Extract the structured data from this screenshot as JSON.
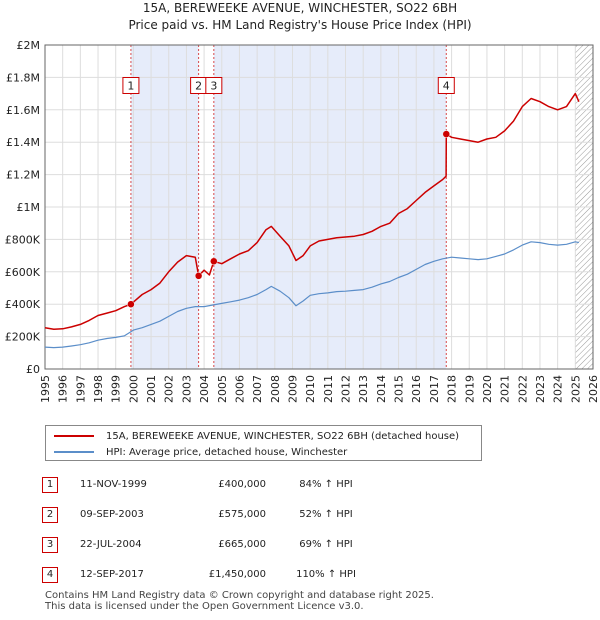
{
  "title_line1": "15A, BEREWEEKE AVENUE, WINCHESTER, SO22 6BH",
  "title_line2": "Price paid vs. HM Land Registry's House Price Index (HPI)",
  "chart_data": {
    "type": "line",
    "title": "15A, BEREWEEKE AVENUE, WINCHESTER, SO22 6BH — Price paid vs. HM Land Registry's House Price Index (HPI)",
    "xlabel": "",
    "ylabel": "",
    "xlim": [
      1995,
      2026
    ],
    "ylim": [
      0,
      2000000
    ],
    "x_ticks": [
      1995,
      1996,
      1997,
      1998,
      1999,
      2000,
      2001,
      2002,
      2003,
      2004,
      2005,
      2006,
      2007,
      2008,
      2009,
      2010,
      2011,
      2012,
      2013,
      2014,
      2015,
      2016,
      2017,
      2018,
      2019,
      2020,
      2021,
      2022,
      2023,
      2024,
      2025,
      2026
    ],
    "y_ticks": [
      0,
      200000,
      400000,
      600000,
      800000,
      1000000,
      1200000,
      1400000,
      1600000,
      1800000,
      2000000
    ],
    "y_tick_labels": [
      "£0",
      "£200K",
      "£400K",
      "£600K",
      "£800K",
      "£1M",
      "£1.2M",
      "£1.4M",
      "£1.6M",
      "£1.8M",
      "£2M"
    ],
    "shaded_ranges": [
      [
        1999.86,
        2003.69
      ],
      [
        2004.55,
        2017.7
      ]
    ],
    "hatched_from": 2025.0,
    "colors": {
      "property": "#cc0000",
      "hpi": "#5b8ec9",
      "shade": "#e6ecfa",
      "marker_border": "#cc0000",
      "grid": "#dddddd",
      "sale_line": "#cc0000"
    },
    "series": [
      {
        "name": "15A, BEREWEEKE AVENUE, WINCHESTER, SO22 6BH (detached house)",
        "color": "#cc0000",
        "points": [
          [
            1995.0,
            255000
          ],
          [
            1995.5,
            245000
          ],
          [
            1996.0,
            248000
          ],
          [
            1996.5,
            260000
          ],
          [
            1997.0,
            275000
          ],
          [
            1997.5,
            300000
          ],
          [
            1998.0,
            330000
          ],
          [
            1998.5,
            345000
          ],
          [
            1999.0,
            360000
          ],
          [
            1999.5,
            385000
          ],
          [
            1999.86,
            400000
          ],
          [
            2000.5,
            460000
          ],
          [
            2001.0,
            490000
          ],
          [
            2001.5,
            530000
          ],
          [
            2002.0,
            600000
          ],
          [
            2002.5,
            660000
          ],
          [
            2003.0,
            700000
          ],
          [
            2003.5,
            690000
          ],
          [
            2003.69,
            575000
          ],
          [
            2004.0,
            610000
          ],
          [
            2004.3,
            580000
          ],
          [
            2004.55,
            665000
          ],
          [
            2005.0,
            650000
          ],
          [
            2005.5,
            680000
          ],
          [
            2006.0,
            710000
          ],
          [
            2006.5,
            730000
          ],
          [
            2007.0,
            780000
          ],
          [
            2007.5,
            860000
          ],
          [
            2007.8,
            880000
          ],
          [
            2008.3,
            820000
          ],
          [
            2008.8,
            760000
          ],
          [
            2009.2,
            670000
          ],
          [
            2009.6,
            700000
          ],
          [
            2010.0,
            760000
          ],
          [
            2010.5,
            790000
          ],
          [
            2011.0,
            800000
          ],
          [
            2011.5,
            810000
          ],
          [
            2012.0,
            815000
          ],
          [
            2012.5,
            820000
          ],
          [
            2013.0,
            830000
          ],
          [
            2013.5,
            850000
          ],
          [
            2014.0,
            880000
          ],
          [
            2014.5,
            900000
          ],
          [
            2015.0,
            960000
          ],
          [
            2015.5,
            990000
          ],
          [
            2016.0,
            1040000
          ],
          [
            2016.5,
            1090000
          ],
          [
            2017.0,
            1130000
          ],
          [
            2017.5,
            1170000
          ],
          [
            2017.69,
            1190000
          ],
          [
            2017.7,
            1450000
          ],
          [
            2018.0,
            1430000
          ],
          [
            2018.5,
            1420000
          ],
          [
            2019.0,
            1410000
          ],
          [
            2019.5,
            1400000
          ],
          [
            2020.0,
            1420000
          ],
          [
            2020.5,
            1430000
          ],
          [
            2021.0,
            1470000
          ],
          [
            2021.5,
            1530000
          ],
          [
            2022.0,
            1620000
          ],
          [
            2022.5,
            1670000
          ],
          [
            2023.0,
            1650000
          ],
          [
            2023.5,
            1620000
          ],
          [
            2024.0,
            1600000
          ],
          [
            2024.5,
            1620000
          ],
          [
            2025.0,
            1700000
          ],
          [
            2025.2,
            1650000
          ]
        ]
      },
      {
        "name": "HPI: Average price, detached house, Winchester",
        "color": "#5b8ec9",
        "points": [
          [
            1995.0,
            135000
          ],
          [
            1995.5,
            132000
          ],
          [
            1996.0,
            135000
          ],
          [
            1996.5,
            142000
          ],
          [
            1997.0,
            150000
          ],
          [
            1997.5,
            162000
          ],
          [
            1998.0,
            178000
          ],
          [
            1998.5,
            188000
          ],
          [
            1999.0,
            195000
          ],
          [
            1999.5,
            205000
          ],
          [
            2000.0,
            240000
          ],
          [
            2000.5,
            255000
          ],
          [
            2001.0,
            275000
          ],
          [
            2001.5,
            295000
          ],
          [
            2002.0,
            325000
          ],
          [
            2002.5,
            355000
          ],
          [
            2003.0,
            375000
          ],
          [
            2003.5,
            385000
          ],
          [
            2004.0,
            385000
          ],
          [
            2004.5,
            395000
          ],
          [
            2005.0,
            405000
          ],
          [
            2005.5,
            415000
          ],
          [
            2006.0,
            425000
          ],
          [
            2006.5,
            440000
          ],
          [
            2007.0,
            460000
          ],
          [
            2007.5,
            490000
          ],
          [
            2007.8,
            510000
          ],
          [
            2008.3,
            480000
          ],
          [
            2008.8,
            440000
          ],
          [
            2009.2,
            390000
          ],
          [
            2009.6,
            420000
          ],
          [
            2010.0,
            455000
          ],
          [
            2010.5,
            465000
          ],
          [
            2011.0,
            470000
          ],
          [
            2011.5,
            478000
          ],
          [
            2012.0,
            480000
          ],
          [
            2012.5,
            485000
          ],
          [
            2013.0,
            490000
          ],
          [
            2013.5,
            505000
          ],
          [
            2014.0,
            525000
          ],
          [
            2014.5,
            540000
          ],
          [
            2015.0,
            565000
          ],
          [
            2015.5,
            585000
          ],
          [
            2016.0,
            615000
          ],
          [
            2016.5,
            645000
          ],
          [
            2017.0,
            665000
          ],
          [
            2017.5,
            680000
          ],
          [
            2018.0,
            690000
          ],
          [
            2018.5,
            685000
          ],
          [
            2019.0,
            680000
          ],
          [
            2019.5,
            675000
          ],
          [
            2020.0,
            680000
          ],
          [
            2020.5,
            695000
          ],
          [
            2021.0,
            710000
          ],
          [
            2021.5,
            735000
          ],
          [
            2022.0,
            765000
          ],
          [
            2022.5,
            785000
          ],
          [
            2023.0,
            780000
          ],
          [
            2023.5,
            770000
          ],
          [
            2024.0,
            765000
          ],
          [
            2024.5,
            770000
          ],
          [
            2025.0,
            785000
          ],
          [
            2025.2,
            780000
          ]
        ]
      }
    ],
    "sales": [
      {
        "n": "1",
        "x": 1999.86,
        "price": 400000
      },
      {
        "n": "2",
        "x": 2003.69,
        "price": 575000
      },
      {
        "n": "3",
        "x": 2004.55,
        "price": 665000
      },
      {
        "n": "4",
        "x": 2017.7,
        "price": 1450000
      }
    ],
    "sale_label_y": 1750000
  },
  "legend": {
    "property_label": "15A, BEREWEEKE AVENUE, WINCHESTER, SO22 6BH (detached house)",
    "hpi_label": "HPI: Average price, detached house, Winchester"
  },
  "sales_table": [
    {
      "n": "1",
      "date": "11-NOV-1999",
      "price": "£400,000",
      "hpi": "84% ↑ HPI"
    },
    {
      "n": "2",
      "date": "09-SEP-2003",
      "price": "£575,000",
      "hpi": "52% ↑ HPI"
    },
    {
      "n": "3",
      "date": "22-JUL-2004",
      "price": "£665,000",
      "hpi": "69% ↑ HPI"
    },
    {
      "n": "4",
      "date": "12-SEP-2017",
      "price": "£1,450,000",
      "hpi": "110% ↑ HPI"
    }
  ],
  "footer_line1": "Contains HM Land Registry data © Crown copyright and database right 2025.",
  "footer_line2": "This data is licensed under the Open Government Licence v3.0."
}
